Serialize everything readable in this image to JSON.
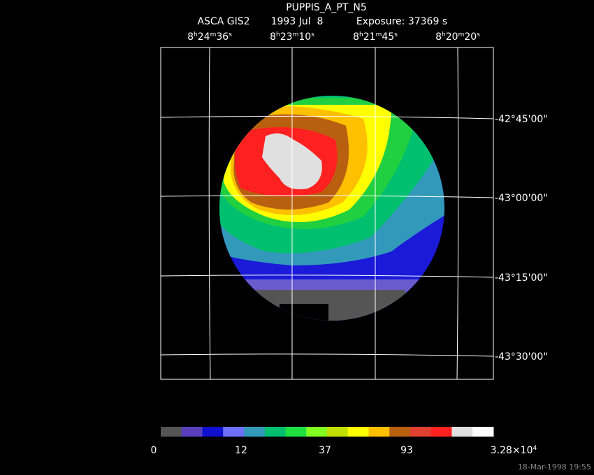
{
  "title": "PUPPIS_A_PT_N5",
  "instrument": "ASCA GIS2",
  "date": "1993 Jul  8",
  "exposure": "Exposure: 37369 s",
  "ra_labels": [
    [
      "8",
      "h",
      "24",
      "m",
      "36",
      "s"
    ],
    [
      "8",
      "h",
      "23",
      "m",
      "10",
      "s"
    ],
    [
      "8",
      "h",
      "21",
      "m",
      "45",
      "s"
    ],
    [
      "8",
      "h",
      "20",
      "m",
      "20",
      "s"
    ]
  ],
  "dec_labels": [
    "-42°45'00\"",
    "-43°00'00\"",
    "-43°15'00\"",
    "-43°30'00\""
  ],
  "colorbar_labels": [
    [
      "0"
    ],
    [
      "12"
    ],
    [
      "37"
    ],
    [
      "93"
    ],
    [
      "3.28×10",
      "4"
    ]
  ],
  "timestamp": "18-Mar-1998 19:55"
}
